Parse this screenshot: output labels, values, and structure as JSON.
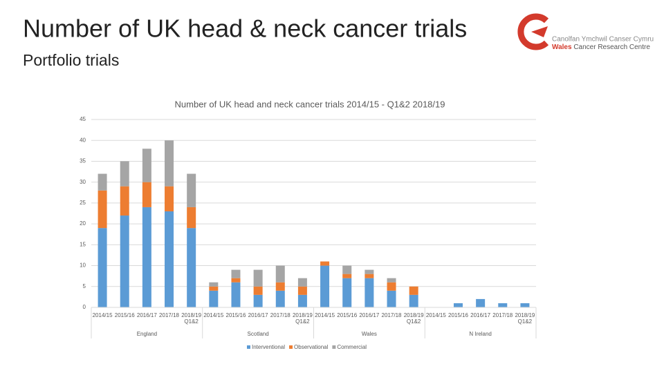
{
  "header": {
    "title": "Number of UK head & neck cancer trials",
    "subtitle": "Portfolio trials"
  },
  "logo": {
    "line1": "Canolfan Ymchwil Canser Cymru",
    "line2_bold": "Wales",
    "line2_rest": "Cancer Research Centre"
  },
  "chart_data": {
    "type": "stacked_bar",
    "title": "Number of UK head and neck cancer trials 2014/15 - Q1&2 2018/19",
    "groups": [
      {
        "name": "England",
        "categories": [
          "2014/15",
          "2015/16",
          "2016/17",
          "2017/18",
          "2018/19 Q1&2"
        ]
      },
      {
        "name": "Scotland",
        "categories": [
          "2014/15",
          "2015/16",
          "2016/17",
          "2017/18",
          "2018/19 Q1&2"
        ]
      },
      {
        "name": "Wales",
        "categories": [
          "2014/15",
          "2015/16",
          "2016/17",
          "2017/18",
          "2018/19 Q1&2"
        ]
      },
      {
        "name": "N Ireland",
        "categories": [
          "2014/15",
          "2015/16",
          "2016/17",
          "2017/18",
          "2018/19 Q1&2"
        ]
      }
    ],
    "series": [
      {
        "name": "Interventional",
        "color": "#5b9bd5",
        "values": [
          19,
          22,
          24,
          23,
          19,
          4,
          6,
          3,
          4,
          3,
          10,
          7,
          7,
          4,
          3,
          0,
          1,
          2,
          1,
          1
        ]
      },
      {
        "name": "Observational",
        "color": "#ed7d31",
        "values": [
          9,
          7,
          6,
          6,
          5,
          1,
          1,
          2,
          2,
          2,
          1,
          1,
          1,
          2,
          2,
          0,
          0,
          0,
          0,
          0
        ]
      },
      {
        "name": "Commercial",
        "color": "#a5a5a5",
        "values": [
          4,
          6,
          8,
          11,
          8,
          1,
          2,
          4,
          4,
          2,
          0,
          2,
          1,
          1,
          0,
          0,
          0,
          0,
          0,
          0
        ]
      }
    ],
    "ylim": [
      0,
      45
    ],
    "yticks": [
      0,
      5,
      10,
      15,
      20,
      25,
      30,
      35,
      40,
      45
    ],
    "grid": true,
    "legend": "bottom"
  }
}
